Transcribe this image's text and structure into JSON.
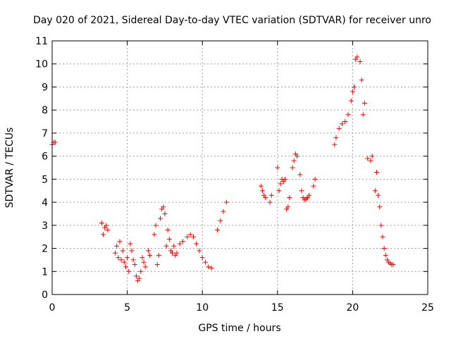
{
  "chart_data": {
    "type": "scatter",
    "title": "Day 020 of 2021, Sidereal Day-to-day VTEC variation (SDTVAR) for receiver unro",
    "xlabel": "GPS time / hours",
    "ylabel": "SDTVAR / TECUs",
    "xlim": [
      0,
      25
    ],
    "ylim": [
      0,
      11
    ],
    "xticks": [
      0,
      5,
      10,
      15,
      20,
      25
    ],
    "yticks": [
      0,
      1,
      2,
      3,
      4,
      5,
      6,
      7,
      8,
      9,
      10,
      11
    ],
    "grid": true,
    "legend": "none",
    "marker": "+",
    "color": "#ff0000",
    "series": [
      {
        "name": "SDTVAR",
        "x": [
          0.0,
          0.1,
          0.2,
          3.3,
          3.4,
          3.5,
          3.6,
          3.7,
          4.2,
          4.3,
          4.4,
          4.5,
          4.6,
          4.7,
          4.8,
          4.9,
          5.0,
          5.1,
          5.2,
          5.3,
          5.4,
          5.5,
          5.6,
          5.7,
          5.8,
          5.9,
          6.0,
          6.1,
          6.2,
          6.4,
          6.5,
          6.8,
          6.9,
          7.0,
          7.1,
          7.2,
          7.3,
          7.4,
          7.5,
          7.6,
          7.7,
          7.8,
          7.9,
          8.0,
          8.1,
          8.2,
          8.3,
          8.5,
          8.7,
          9.0,
          9.2,
          9.4,
          9.6,
          9.8,
          10.0,
          10.2,
          10.4,
          10.6,
          11.0,
          11.2,
          11.4,
          11.6,
          13.9,
          14.0,
          14.1,
          14.2,
          14.5,
          14.6,
          15.0,
          15.1,
          15.2,
          15.3,
          15.4,
          15.5,
          15.6,
          15.7,
          15.8,
          16.0,
          16.1,
          16.2,
          16.3,
          16.5,
          16.6,
          16.7,
          16.8,
          16.9,
          17.0,
          17.1,
          17.4,
          17.5,
          18.8,
          18.9,
          19.1,
          19.3,
          19.5,
          19.7,
          19.9,
          20.0,
          20.1,
          20.2,
          20.3,
          20.5,
          20.6,
          20.7,
          20.8,
          21.0,
          21.2,
          21.3,
          21.5,
          21.6,
          21.7,
          21.8,
          21.9,
          22.0,
          22.1,
          22.2,
          22.3,
          22.4,
          22.5,
          22.6,
          22.7
        ],
        "y": [
          6.5,
          6.6,
          6.6,
          3.1,
          2.6,
          2.9,
          3.0,
          2.8,
          1.8,
          2.1,
          1.6,
          2.3,
          1.5,
          1.9,
          1.4,
          1.2,
          1.6,
          1.0,
          2.2,
          1.9,
          1.5,
          1.3,
          0.8,
          0.6,
          0.7,
          1.0,
          1.6,
          1.4,
          1.2,
          1.9,
          1.7,
          2.6,
          3.0,
          1.3,
          1.7,
          3.3,
          3.7,
          3.8,
          3.5,
          2.1,
          2.8,
          2.4,
          1.9,
          1.8,
          2.1,
          1.7,
          1.8,
          2.2,
          2.3,
          2.5,
          2.6,
          2.5,
          2.2,
          1.9,
          1.6,
          1.4,
          1.2,
          1.15,
          2.8,
          3.2,
          3.6,
          4.0,
          4.7,
          4.5,
          4.3,
          4.2,
          4.0,
          4.3,
          5.5,
          4.5,
          4.8,
          5.0,
          4.9,
          5.0,
          3.7,
          3.8,
          4.2,
          5.5,
          5.8,
          6.1,
          6.0,
          5.2,
          4.5,
          4.2,
          4.1,
          4.15,
          4.2,
          4.3,
          4.7,
          5.0,
          6.5,
          6.8,
          7.2,
          7.4,
          7.5,
          7.8,
          8.4,
          8.8,
          9.0,
          10.2,
          10.3,
          10.1,
          9.3,
          7.8,
          8.3,
          5.9,
          5.8,
          6.0,
          4.5,
          5.3,
          4.3,
          3.8,
          3.0,
          2.5,
          2.0,
          1.7,
          1.5,
          1.4,
          1.35,
          1.3,
          1.3
        ]
      }
    ]
  }
}
